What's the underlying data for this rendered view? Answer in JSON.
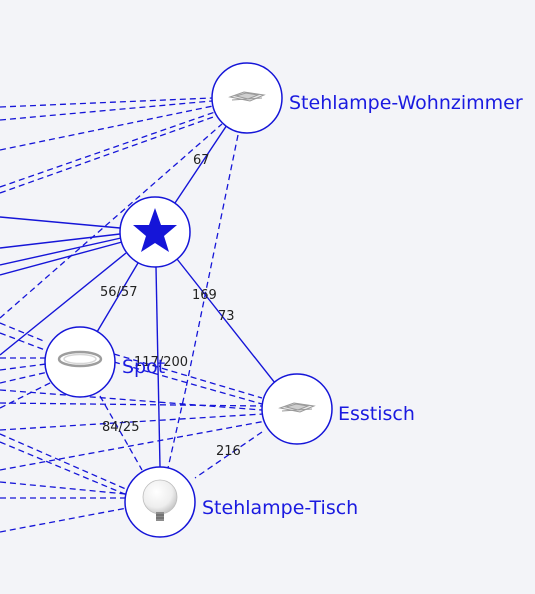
{
  "colors": {
    "edge": "#1515d8",
    "label": "#1a1ae0",
    "background": "#f3f4f8"
  },
  "nodes": {
    "hub": {
      "icon": "star-icon"
    },
    "stehlampe_wohnzimmer": {
      "label": "Stehlampe-Wohnzimmer",
      "icon": "ceiling-lamp-icon"
    },
    "spot": {
      "label": "Spot",
      "icon": "ring-lamp-icon"
    },
    "esstisch": {
      "label": "Esstisch",
      "icon": "ceiling-lamp-icon"
    },
    "stehlampe_tisch": {
      "label": "Stehlampe-Tisch",
      "icon": "light-bulb-icon"
    }
  },
  "edge_labels": {
    "hub_wohnzimmer": "67",
    "hub_spot": "56/57",
    "hub_esstisch_a": "169",
    "hub_esstisch_b": "73",
    "hub_tisch": "117/200",
    "spot_tisch": "84/25",
    "esstisch_tisch": "216"
  }
}
